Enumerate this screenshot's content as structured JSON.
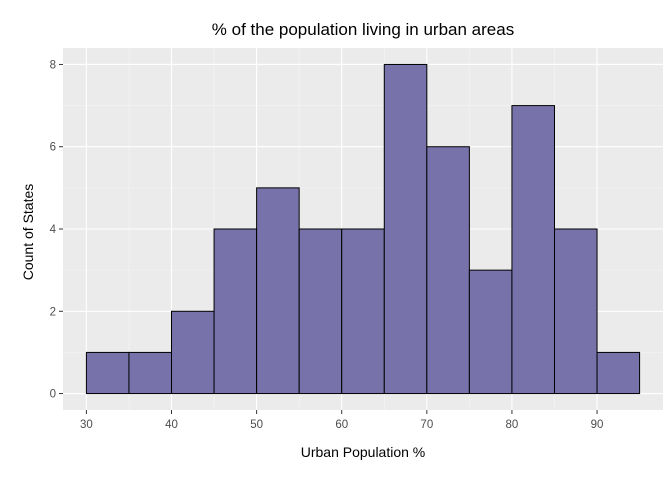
{
  "chart_data": {
    "type": "bar",
    "title": "% of the population living in urban areas",
    "xlabel": "Urban Population %",
    "ylabel": "Count of States",
    "bins": [
      {
        "start": 30,
        "end": 35,
        "count": 1
      },
      {
        "start": 35,
        "end": 40,
        "count": 1
      },
      {
        "start": 40,
        "end": 45,
        "count": 2
      },
      {
        "start": 45,
        "end": 50,
        "count": 4
      },
      {
        "start": 50,
        "end": 55,
        "count": 5
      },
      {
        "start": 55,
        "end": 60,
        "count": 4
      },
      {
        "start": 60,
        "end": 65,
        "count": 4
      },
      {
        "start": 65,
        "end": 70,
        "count": 8
      },
      {
        "start": 70,
        "end": 75,
        "count": 6
      },
      {
        "start": 75,
        "end": 80,
        "count": 3
      },
      {
        "start": 80,
        "end": 85,
        "count": 7
      },
      {
        "start": 85,
        "end": 90,
        "count": 4
      },
      {
        "start": 90,
        "end": 95,
        "count": 1
      }
    ],
    "x_ticks": [
      "30",
      "40",
      "50",
      "60",
      "70",
      "80",
      "90"
    ],
    "y_ticks": [
      "0",
      "2",
      "4",
      "6",
      "8"
    ],
    "xlim": [
      27.25,
      97.75
    ],
    "ylim": [
      -0.4,
      8.4
    ],
    "grid": true,
    "colors": {
      "bar_fill": "#7872aa",
      "bar_edge": "#000000",
      "panel": "#ebebeb",
      "grid_major": "#ffffff",
      "grid_minor": "#f5f5f5"
    }
  }
}
